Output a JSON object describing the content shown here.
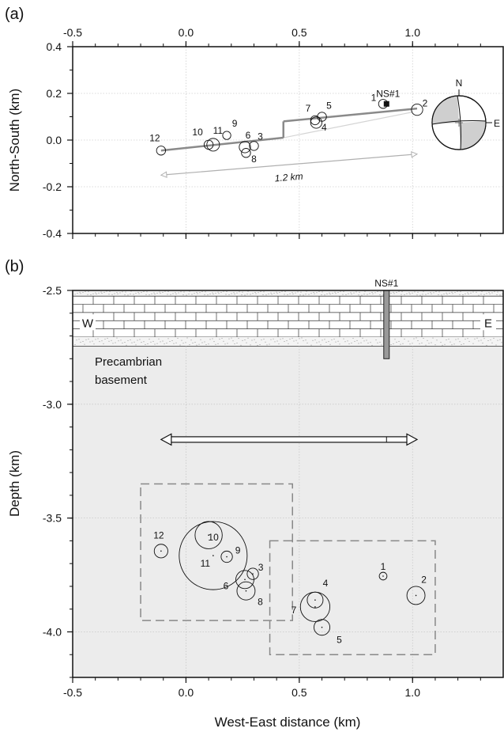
{
  "chart_data": [
    {
      "panel_label": "(a)",
      "type": "scatter",
      "xlim": [
        -0.5,
        1.4
      ],
      "ylim": [
        -0.4,
        0.4
      ],
      "xticks": [
        "-0.5",
        "0.0",
        "0.5",
        "1.0"
      ],
      "yticks": [
        "0.4",
        "0.2",
        "0.0",
        "-0.2",
        "-0.4"
      ],
      "xlabel": "",
      "ylabel": "North-South (km)",
      "grid": true,
      "events": [
        {
          "id": "1",
          "x": 0.87,
          "y": 0.155,
          "r": 0.02
        },
        {
          "id": "2",
          "x": 1.02,
          "y": 0.13,
          "r": 0.025
        },
        {
          "id": "3",
          "x": 0.3,
          "y": -0.025,
          "r": 0.02
        },
        {
          "id": "4",
          "x": 0.575,
          "y": 0.075,
          "r": 0.025
        },
        {
          "id": "5",
          "x": 0.6,
          "y": 0.1,
          "r": 0.02
        },
        {
          "id": "6",
          "x": 0.26,
          "y": -0.03,
          "r": 0.025
        },
        {
          "id": "7",
          "x": 0.57,
          "y": 0.085,
          "r": 0.02
        },
        {
          "id": "8",
          "x": 0.265,
          "y": -0.055,
          "r": 0.02
        },
        {
          "id": "9",
          "x": 0.18,
          "y": 0.02,
          "r": 0.018
        },
        {
          "id": "10",
          "x": 0.1,
          "y": -0.02,
          "r": 0.02
        },
        {
          "id": "11",
          "x": 0.12,
          "y": -0.02,
          "r": 0.028
        },
        {
          "id": "12",
          "x": -0.11,
          "y": -0.045,
          "r": 0.02
        }
      ],
      "well": {
        "label": "NS#1",
        "x": 0.885,
        "y": 0.155
      },
      "fault_segments": [
        {
          "x": [
            -0.11,
            0.43
          ],
          "y": [
            -0.045,
            0.01
          ]
        },
        {
          "x": [
            0.43,
            1.02
          ],
          "y": [
            0.08,
            0.135
          ]
        }
      ],
      "scale_arrow": {
        "label": "1.2 km",
        "x": [
          -0.11,
          1.02
        ],
        "y": [
          -0.15,
          -0.06
        ]
      },
      "focal_mechanism": {
        "labels": [
          "N",
          "E"
        ]
      }
    },
    {
      "panel_label": "(b)",
      "type": "scatter",
      "xlim": [
        -0.5,
        1.4
      ],
      "ylim": [
        -4.2,
        -2.5
      ],
      "xticks": [
        "-0.5",
        "0.0",
        "0.5",
        "1.0"
      ],
      "yticks": [
        "-2.5",
        "-3.0",
        "-3.5",
        "-4.0"
      ],
      "xlabel": "West-East distance (km)",
      "ylabel": "Depth (km)",
      "grid": true,
      "events": [
        {
          "id": "1",
          "x": 0.87,
          "y": -3.755,
          "r": 0.017
        },
        {
          "id": "2",
          "x": 1.015,
          "y": -3.84,
          "r": 0.04
        },
        {
          "id": "3",
          "x": 0.295,
          "y": -3.745,
          "r": 0.025
        },
        {
          "id": "4",
          "x": 0.57,
          "y": -3.86,
          "r": 0.035
        },
        {
          "id": "5",
          "x": 0.6,
          "y": -3.98,
          "r": 0.035
        },
        {
          "id": "6",
          "x": 0.26,
          "y": -3.77,
          "r": 0.04
        },
        {
          "id": "7",
          "x": 0.57,
          "y": -3.89,
          "r": 0.065
        },
        {
          "id": "8",
          "x": 0.265,
          "y": -3.82,
          "r": 0.04
        },
        {
          "id": "9",
          "x": 0.18,
          "y": -3.67,
          "r": 0.025
        },
        {
          "id": "10",
          "x": 0.1,
          "y": -3.575,
          "r": 0.06
        },
        {
          "id": "11",
          "x": 0.12,
          "y": -3.665,
          "r": 0.15
        },
        {
          "id": "12",
          "x": -0.11,
          "y": -3.645,
          "r": 0.03
        }
      ],
      "well_label": "NS#1",
      "side_labels": [
        "W",
        "E"
      ],
      "unit_label_line1": "Precambrian",
      "unit_label_line2": "basement",
      "dashed_boxes": [
        {
          "x": [
            -0.2,
            0.47
          ],
          "y": [
            -3.35,
            -3.95
          ]
        },
        {
          "x": [
            0.37,
            1.1
          ],
          "y": [
            -3.6,
            -4.1
          ]
        }
      ],
      "double_arrow": {
        "x": [
          -0.11,
          1.02
        ],
        "y": -3.155
      }
    }
  ]
}
